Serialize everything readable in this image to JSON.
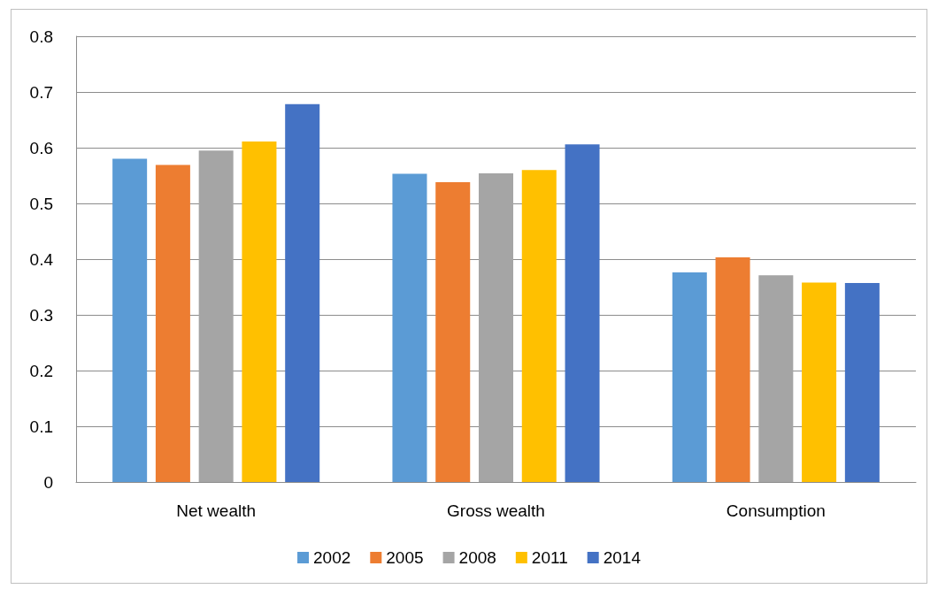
{
  "chart_data": {
    "type": "bar",
    "categories": [
      "Net wealth",
      "Gross wealth",
      "Consumption"
    ],
    "series": [
      {
        "name": "2002",
        "color": "#5b9bd5",
        "values": [
          0.58,
          0.553,
          0.376
        ]
      },
      {
        "name": "2005",
        "color": "#ed7d31",
        "values": [
          0.569,
          0.538,
          0.403
        ]
      },
      {
        "name": "2008",
        "color": "#a5a5a5",
        "values": [
          0.595,
          0.554,
          0.371
        ]
      },
      {
        "name": "2011",
        "color": "#ffc000",
        "values": [
          0.611,
          0.56,
          0.358
        ]
      },
      {
        "name": "2014",
        "color": "#4472c4",
        "values": [
          0.678,
          0.606,
          0.357
        ]
      }
    ],
    "ylim": [
      0,
      0.8
    ],
    "yticks": [
      0,
      0.1,
      0.2,
      0.3,
      0.4,
      0.5,
      0.6,
      0.7,
      0.8
    ],
    "grid": "y",
    "legend": "bottom"
  }
}
